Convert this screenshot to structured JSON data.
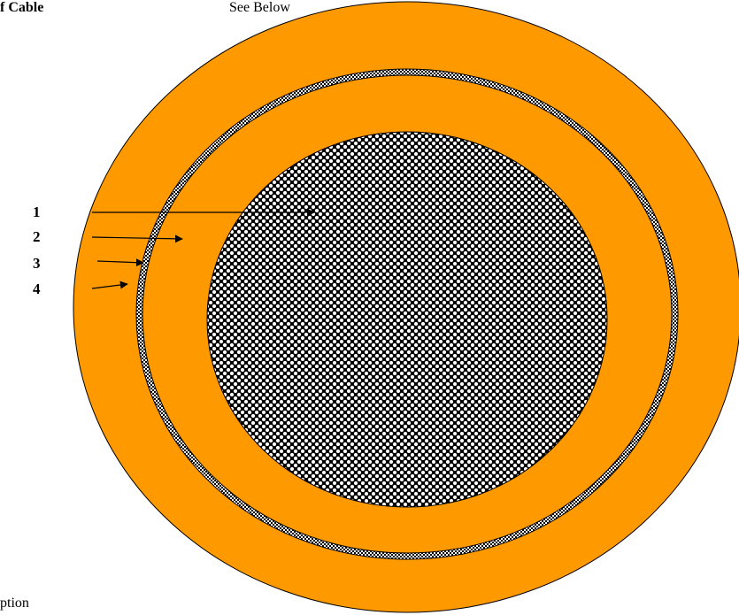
{
  "header": {
    "left_prefix": "f ",
    "left_bold": "Cable",
    "right": "See Below"
  },
  "labels": [
    "1",
    "2",
    "3",
    "4"
  ],
  "footer": {
    "caption": "ption"
  },
  "colors": {
    "jacket": "#ff9900",
    "conductor_pattern": "black-white checker",
    "screen_pattern": "fine black-white check",
    "outline": "#000000"
  }
}
